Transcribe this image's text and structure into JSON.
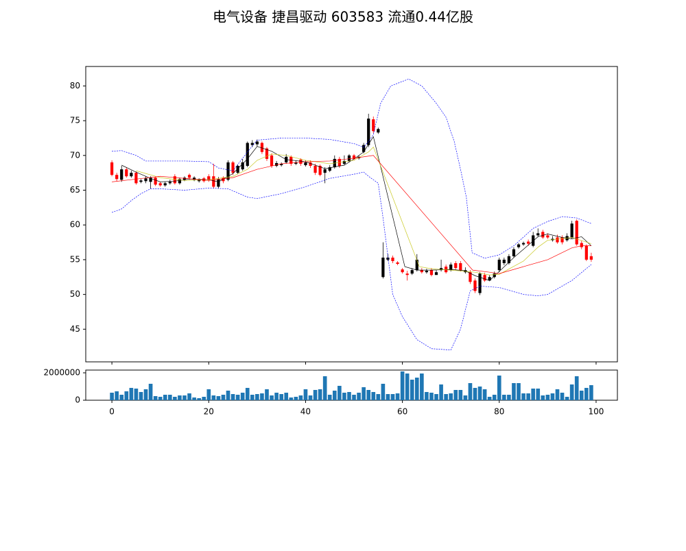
{
  "chart_data": {
    "type": "candlestick",
    "title": "电气设备 捷昌驱动 603583 流通0.44亿股",
    "xlim": [
      -5.4,
      104.4
    ],
    "xticks": [
      0,
      20,
      40,
      60,
      80,
      100
    ],
    "ylim": [
      40.3,
      82.8
    ],
    "yticks": [
      45,
      50,
      55,
      60,
      65,
      70,
      75,
      80
    ],
    "color_up": "#000000",
    "color_down": "#ff0000",
    "x": [
      0,
      1,
      2,
      3,
      4,
      5,
      6,
      7,
      8,
      9,
      10,
      11,
      12,
      13,
      14,
      15,
      16,
      17,
      18,
      19,
      20,
      21,
      22,
      23,
      24,
      25,
      26,
      27,
      28,
      29,
      30,
      31,
      32,
      33,
      34,
      35,
      36,
      37,
      38,
      39,
      40,
      41,
      42,
      43,
      44,
      45,
      46,
      47,
      48,
      49,
      50,
      51,
      52,
      53,
      54,
      55,
      56,
      57,
      58,
      59,
      60,
      61,
      62,
      63,
      64,
      65,
      66,
      67,
      68,
      69,
      70,
      71,
      72,
      73,
      74,
      75,
      76,
      77,
      78,
      79,
      80,
      81,
      82,
      83,
      84,
      85,
      86,
      87,
      88,
      89,
      90,
      91,
      92,
      93,
      94,
      95,
      96,
      97,
      98,
      99
    ],
    "open": [
      69,
      67.2,
      66.5,
      68,
      67,
      67.5,
      66.2,
      66.3,
      66.2,
      66.8,
      66,
      65.7,
      66,
      67,
      66,
      66.5,
      67.2,
      66.5,
      66.3,
      66.7,
      67,
      67,
      65.5,
      66.8,
      66.5,
      69,
      67.5,
      68,
      68.5,
      71.5,
      71.6,
      71.8,
      71,
      70,
      68.5,
      68.6,
      69,
      69.8,
      68.8,
      69.4,
      68.6,
      69,
      68.5,
      68.5,
      67.5,
      67.8,
      68.3,
      69.5,
      68.8,
      69.2,
      70,
      69.6,
      70.5,
      71.5,
      75.2,
      73.3,
      52.5,
      55,
      55.3,
      54.6,
      53.6,
      53,
      53,
      53.5,
      53.5,
      53.2,
      53.5,
      52.8,
      53.5,
      54,
      53.5,
      54.5,
      54.5,
      53.2,
      53.2,
      52,
      50.2,
      52.8,
      52,
      52.5,
      53.5,
      54.5,
      54.5,
      55.5,
      56.8,
      57.2,
      57.6,
      57,
      58.5,
      59,
      58.5,
      57.8,
      58.2,
      58.2,
      57.8,
      58.2,
      60.6,
      57.4,
      57,
      55.5
    ],
    "high": [
      69.3,
      67.5,
      68.5,
      68.3,
      67.8,
      67.7,
      66.6,
      67,
      67,
      66.9,
      66.2,
      66.2,
      66.5,
      67.3,
      66.8,
      67,
      67.4,
      67,
      66.7,
      66.9,
      67.3,
      68.8,
      66.9,
      67,
      69.3,
      69.2,
      68.7,
      69.5,
      72,
      72.2,
      72.3,
      72,
      71.2,
      70.3,
      69.2,
      69,
      70.2,
      70,
      69.3,
      69.6,
      69.3,
      69.3,
      68.8,
      68.7,
      68.3,
      68.6,
      70,
      69.8,
      70,
      70.2,
      70.2,
      70,
      71.8,
      76,
      75.6,
      74,
      57.5,
      55.8,
      55.6,
      54.8,
      53.8,
      53.4,
      53.8,
      55.8,
      53.8,
      53.7,
      53.8,
      53.5,
      55,
      54.3,
      54.6,
      54.8,
      54.8,
      53.9,
      53.5,
      52.3,
      53.2,
      53.1,
      52.8,
      53.3,
      55.3,
      55.3,
      55.8,
      56.8,
      57.4,
      57.6,
      57.9,
      59,
      59.5,
      59.3,
      58.8,
      58.4,
      58.6,
      58.5,
      58.8,
      60.6,
      60.8,
      57.7,
      57.2,
      56
    ],
    "low": [
      67,
      66.3,
      66.2,
      66.8,
      66.8,
      65.8,
      66,
      66,
      65.2,
      65.6,
      65.5,
      65.5,
      65.8,
      65.8,
      65.8,
      66.3,
      66.5,
      66.3,
      66.1,
      66.1,
      66.2,
      65.3,
      65.3,
      66,
      66.3,
      67.2,
      67.3,
      67.8,
      68.3,
      71.2,
      71.3,
      70.2,
      69.2,
      68.2,
      68.3,
      68.4,
      68.8,
      68.5,
      68.6,
      68.5,
      68.4,
      68.2,
      67.2,
      67,
      66,
      67.6,
      68.1,
      68.2,
      68.6,
      69,
      69.3,
      69.4,
      70.3,
      71.2,
      73.2,
      73.1,
      52.3,
      54.8,
      54.5,
      54.2,
      53,
      52,
      52.8,
      53.3,
      53,
      53,
      52.6,
      52.9,
      53.3,
      53,
      53.3,
      53.5,
      53.3,
      53,
      51.5,
      50.2,
      49.9,
      51.8,
      51.9,
      52.3,
      53.2,
      54.2,
      54.3,
      55.3,
      56.6,
      57,
      57,
      56.8,
      58.3,
      58,
      58,
      57.6,
      57.3,
      57.2,
      57.6,
      58,
      57,
      56.5,
      54.8,
      54.7
    ],
    "close": [
      67.2,
      66.6,
      68,
      67,
      67.5,
      66,
      66.4,
      66.7,
      66.8,
      65.8,
      65.7,
      66,
      66.2,
      66,
      66.6,
      66.8,
      66.8,
      66.8,
      66.6,
      66.3,
      66.5,
      65.5,
      66.6,
      66.3,
      69,
      67.5,
      68.5,
      69,
      71.8,
      71.8,
      72,
      70.5,
      69.5,
      68.5,
      68.9,
      68.8,
      69.8,
      68.8,
      69,
      68.8,
      69,
      68.5,
      67.5,
      67.2,
      68,
      68.3,
      69.5,
      68.5,
      69.2,
      70,
      69.5,
      69.8,
      71.5,
      75.3,
      73.5,
      73.8,
      55.3,
      55.3,
      54.8,
      54.4,
      53.2,
      52.8,
      53.5,
      55,
      53.2,
      53.4,
      52.8,
      53.2,
      53.8,
      53.2,
      54.3,
      53.8,
      53.5,
      53.5,
      51.8,
      50.5,
      53,
      52,
      52.5,
      53,
      55,
      55,
      55.5,
      56.5,
      57.2,
      57.4,
      57.3,
      58.5,
      58.8,
      58.2,
      58.2,
      58,
      57.5,
      57.5,
      58.4,
      60.2,
      57.2,
      56.8,
      55,
      55
    ],
    "lines": [
      {
        "color": "#000000",
        "dashed": false,
        "x": [
          2,
          5,
          8,
          10,
          13,
          16,
          20,
          22,
          25,
          28,
          30,
          33,
          36,
          40,
          44,
          48,
          50,
          52,
          54,
          60.5,
          63,
          66,
          70,
          73,
          75,
          78,
          80,
          83,
          85,
          88,
          90,
          93,
          95,
          97,
          99
        ],
        "values": [
          68.6,
          67.6,
          66.7,
          66.2,
          66.3,
          66.6,
          66.5,
          66.2,
          67.4,
          69.5,
          71.3,
          70.6,
          69.4,
          69.1,
          68.1,
          68.6,
          69.5,
          70.5,
          72.7,
          54,
          53.5,
          53.5,
          53.6,
          53.4,
          52.7,
          52,
          53.3,
          55.3,
          56.5,
          58.3,
          58.7,
          58.2,
          58,
          58.3,
          57
        ]
      },
      {
        "color": "#c8c820",
        "dashed": false,
        "x": [
          5,
          10,
          15,
          20,
          25,
          28,
          30,
          33,
          36,
          40,
          45,
          50,
          53,
          54,
          63.5,
          66,
          70,
          75,
          78,
          80,
          85,
          88,
          90,
          95,
          99
        ],
        "values": [
          67.8,
          66.8,
          66.4,
          66.5,
          67,
          68,
          69.3,
          70.2,
          70,
          69.3,
          68.8,
          69.3,
          70.5,
          71.2,
          54,
          53.7,
          53.5,
          53.2,
          52.8,
          52.9,
          54.8,
          56.8,
          57.8,
          58.2,
          57.3
        ]
      },
      {
        "color": "#ff0000",
        "dashed": false,
        "x": [
          0,
          5,
          10,
          15,
          20,
          25,
          30,
          35,
          40,
          45,
          50,
          54,
          74.5,
          78,
          80,
          85,
          90,
          95,
          97,
          99
        ],
        "values": [
          66.2,
          66.6,
          67,
          66.7,
          66.4,
          66.8,
          68,
          68.8,
          69.1,
          69.2,
          69.6,
          70,
          53.5,
          53.2,
          53,
          54,
          55,
          56.7,
          57,
          57
        ]
      },
      {
        "color": "#0000ff",
        "dashed": true,
        "x": [
          0,
          2,
          5,
          7,
          10,
          15,
          20,
          22,
          25,
          28,
          30,
          35,
          40,
          45,
          50,
          52,
          53,
          54,
          55.5,
          57.6,
          61.3,
          64,
          67,
          69,
          70.7,
          72,
          73.2,
          74.4,
          77,
          80,
          83,
          87,
          90,
          93,
          96,
          99
        ],
        "values": [
          70.6,
          70.7,
          70,
          69.2,
          69.2,
          69.2,
          69.1,
          68.2,
          67.8,
          70.5,
          72.2,
          72.5,
          72.5,
          72.3,
          71.7,
          71.2,
          72,
          73,
          77.5,
          80,
          81,
          80,
          77.5,
          75.5,
          72,
          68,
          64,
          56,
          55.2,
          55.7,
          57,
          59.5,
          60.5,
          61.2,
          61,
          60.2
        ]
      },
      {
        "color": "#0000ff",
        "dashed": true,
        "x": [
          0,
          2,
          4,
          6,
          8,
          10,
          15,
          20,
          24,
          28,
          30,
          35,
          40,
          45,
          50,
          52,
          53,
          55,
          56,
          58,
          60,
          63,
          66,
          70,
          72,
          74,
          76,
          80,
          85,
          88,
          90,
          95,
          99
        ],
        "values": [
          61.8,
          62.3,
          63.5,
          64.5,
          65.2,
          65.2,
          65,
          65.3,
          65.2,
          64,
          63.8,
          64.5,
          65.5,
          66.7,
          67.3,
          67.6,
          67,
          66,
          61,
          50,
          46.8,
          43.5,
          42.2,
          42,
          45,
          50.5,
          51.2,
          51,
          50,
          49.8,
          50,
          52,
          54.3
        ]
      }
    ],
    "volume_color": "#1f77b4",
    "volume_ylim": [
      0,
      2200000
    ],
    "volume_yticks": [
      0,
      2000000
    ],
    "volume": [
      550000,
      650000,
      400000,
      650000,
      900000,
      850000,
      600000,
      800000,
      1200000,
      300000,
      250000,
      400000,
      400000,
      250000,
      350000,
      350000,
      500000,
      200000,
      150000,
      250000,
      800000,
      350000,
      300000,
      400000,
      700000,
      450000,
      400000,
      550000,
      900000,
      400000,
      450000,
      500000,
      800000,
      350000,
      550000,
      450000,
      550000,
      200000,
      250000,
      350000,
      800000,
      350000,
      750000,
      800000,
      1750000,
      400000,
      700000,
      1050000,
      550000,
      600000,
      400000,
      550000,
      950000,
      750000,
      600000,
      450000,
      1200000,
      450000,
      450000,
      500000,
      2100000,
      1950000,
      1500000,
      1650000,
      1950000,
      600000,
      550000,
      450000,
      1150000,
      450000,
      500000,
      750000,
      750000,
      350000,
      1250000,
      900000,
      1000000,
      800000,
      250000,
      400000,
      1800000,
      400000,
      400000,
      1250000,
      1250000,
      500000,
      500000,
      850000,
      850000,
      350000,
      400000,
      500000,
      800000,
      550000,
      250000,
      1150000,
      1750000,
      700000,
      900000,
      1100000
    ]
  }
}
